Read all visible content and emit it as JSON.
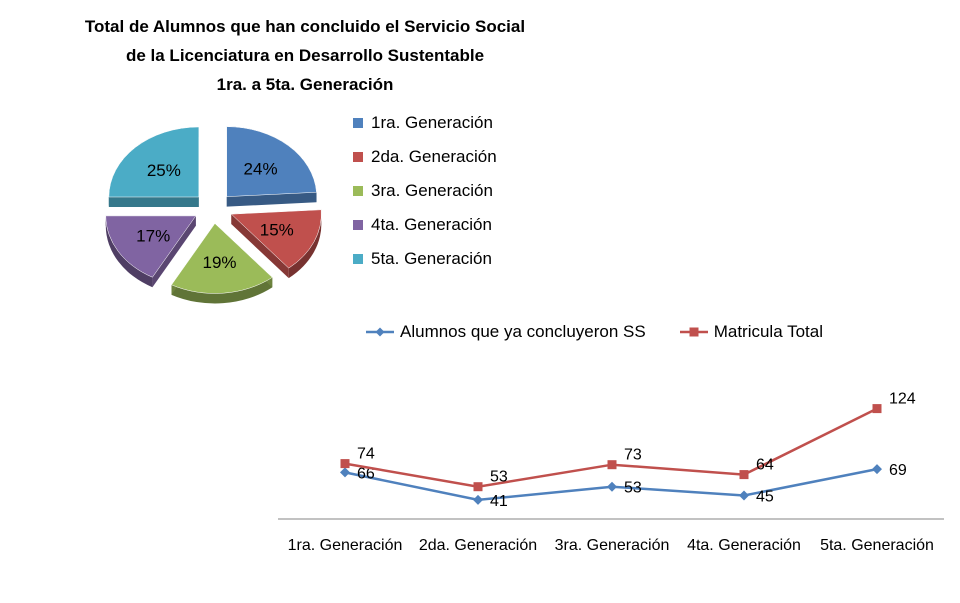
{
  "title_lines": [
    "Total de Alumnos que han concluido el Servicio Social",
    "de la Licenciatura en Desarrollo Sustentable",
    "1ra. a 5ta. Generación"
  ],
  "chart_data": [
    {
      "type": "pie",
      "exploded": true,
      "style": "3d",
      "legend_position": "right",
      "categories": [
        "1ra. Generación",
        "2da. Generación",
        "3ra. Generación",
        "4ta. Generación",
        "5ta. Generación"
      ],
      "values": [
        24,
        15,
        19,
        17,
        25
      ],
      "data_labels": [
        "24%",
        "15%",
        "19%",
        "17%",
        "25%"
      ],
      "colors": [
        "#4f81bd",
        "#c0504d",
        "#9bbb59",
        "#8064a2",
        "#4bacc6"
      ]
    },
    {
      "type": "line",
      "legend_position": "top",
      "categories": [
        "1ra. Generación",
        "2da. Generación",
        "3ra. Generación",
        "4ta. Generación",
        "5ta. Generación"
      ],
      "series": [
        {
          "name": "Alumnos que ya concluyeron SS",
          "values": [
            66,
            41,
            53,
            45,
            69
          ],
          "color": "#4f81bd",
          "marker": "diamond"
        },
        {
          "name": "Matricula Total",
          "values": [
            74,
            53,
            73,
            64,
            124
          ],
          "color": "#c0504d",
          "marker": "square"
        }
      ],
      "grid": false,
      "y_axis_visible": false
    }
  ]
}
